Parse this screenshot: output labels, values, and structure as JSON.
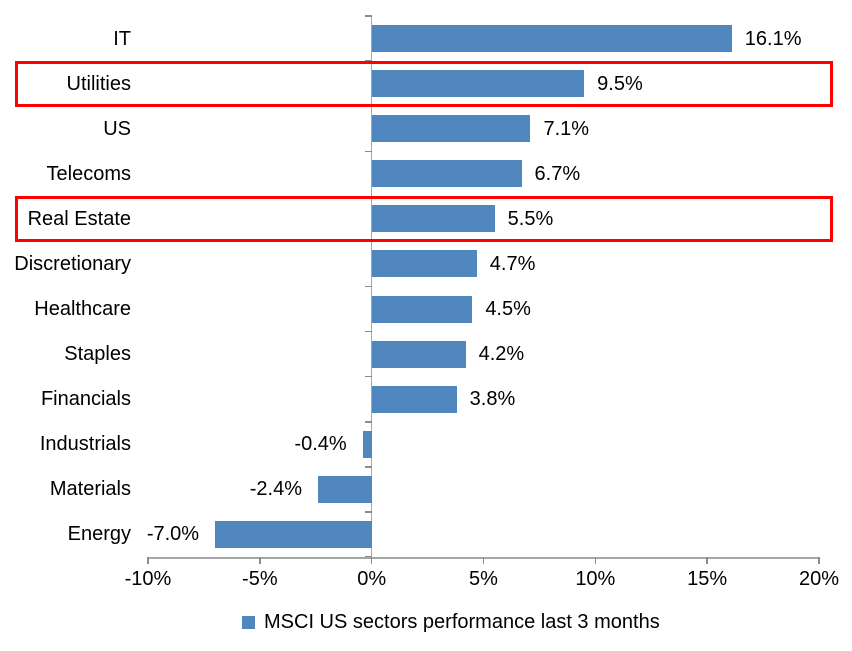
{
  "chart_data": {
    "type": "bar",
    "orientation": "horizontal",
    "title": "",
    "categories": [
      "IT",
      "Utilities",
      "US",
      "Telecoms",
      "Real Estate",
      "Discretionary",
      "Healthcare",
      "Staples",
      "Financials",
      "Industrials",
      "Materials",
      "Energy"
    ],
    "values": [
      16.1,
      9.5,
      7.1,
      6.7,
      5.5,
      4.7,
      4.5,
      4.2,
      3.8,
      -0.4,
      -2.4,
      -7.0
    ],
    "value_labels": [
      "16.1%",
      "9.5%",
      "7.1%",
      "6.7%",
      "5.5%",
      "4.7%",
      "4.5%",
      "4.2%",
      "3.8%",
      "-0.4%",
      "-2.4%",
      "-7.0%"
    ],
    "highlighted_categories": [
      "Utilities",
      "Real Estate"
    ],
    "x_tick_values": [
      -10,
      -5,
      0,
      5,
      10,
      15,
      20
    ],
    "x_tick_labels": [
      "-10%",
      "-5%",
      "0%",
      "5%",
      "10%",
      "15%",
      "20%"
    ],
    "xlim": [
      -10,
      20
    ],
    "grid": "off",
    "legend_position": "bottom-center",
    "legend": [
      {
        "label": "MSCI US sectors performance last 3 months",
        "color": "#5087BE"
      }
    ],
    "colors": {
      "bar": "#5087BE",
      "highlight_border": "#FF0000",
      "axis_line": "#A6A6A6",
      "tick": "#8C8C8C",
      "text": "#000000"
    }
  }
}
